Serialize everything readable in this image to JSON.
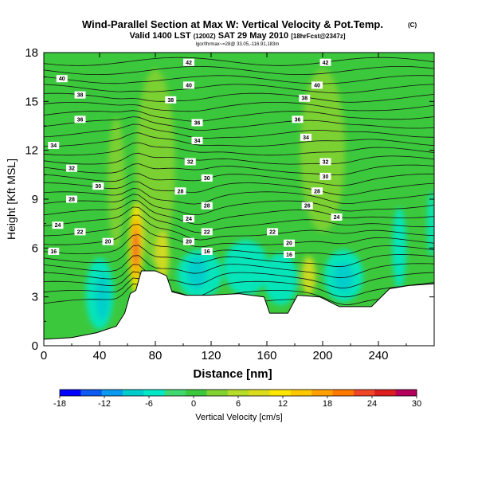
{
  "chart_data": {
    "type": "heatmap",
    "title": "Wind-Parallel Section at Max W: Vertical Velocity & Pot.Temp.",
    "title_mark": "(C)",
    "subtitle_main": "Valid 1400 LST",
    "subtitle_paren": "(1200Z)",
    "subtitle_date": "SAT 29 May 2010",
    "subtitle_fcst": "[18hrFcst@2347z]",
    "info_line": "lgor/thrmax~=28@ 33.05,-116.91,183m",
    "xlabel": "Distance [nm]",
    "ylabel": "Height [Kft MSL]",
    "xlim": [
      0,
      280
    ],
    "ylim": [
      0,
      18
    ],
    "x_ticks": [
      0,
      40,
      80,
      120,
      160,
      200,
      240
    ],
    "y_ticks": [
      0,
      3,
      6,
      9,
      12,
      15,
      18
    ],
    "colorbar": {
      "label": "Vertical Velocity [cm/s]",
      "range": [
        -18,
        30
      ],
      "step": 3,
      "tick_labels": [
        "-18",
        "-12",
        "-6",
        "0",
        "6",
        "12",
        "18",
        "24",
        "30"
      ],
      "colors": [
        "#0000ff",
        "#0c5af0",
        "#0a9af0",
        "#00cccc",
        "#00e8c8",
        "#40d870",
        "#3cc83c",
        "#82d232",
        "#b4dc28",
        "#dcdc1e",
        "#ffe600",
        "#ffc800",
        "#ffa000",
        "#ff7800",
        "#f04628",
        "#dc1e1e",
        "#b4005a"
      ]
    },
    "terrain": [
      [
        0,
        0.4
      ],
      [
        20,
        0.5
      ],
      [
        38,
        0.8
      ],
      [
        52,
        1.2
      ],
      [
        58,
        2.0
      ],
      [
        62,
        3.2
      ],
      [
        66,
        3.4
      ],
      [
        70,
        4.6
      ],
      [
        80,
        4.6
      ],
      [
        88,
        4.3
      ],
      [
        92,
        3.3
      ],
      [
        102,
        3.1
      ],
      [
        118,
        3.1
      ],
      [
        140,
        3.2
      ],
      [
        158,
        3.0
      ],
      [
        162,
        2.0
      ],
      [
        175,
        2.0
      ],
      [
        182,
        3.1
      ],
      [
        198,
        3.0
      ],
      [
        212,
        2.4
      ],
      [
        235,
        2.4
      ],
      [
        248,
        3.5
      ],
      [
        262,
        3.7
      ],
      [
        280,
        3.8
      ]
    ],
    "isentropes_K": [
      16,
      18,
      20,
      22,
      24,
      26,
      28,
      30,
      32,
      34,
      36,
      38,
      40,
      42
    ],
    "isentrope_labels": [
      {
        "text": "42",
        "x": 104,
        "y": 17.4
      },
      {
        "text": "42",
        "x": 202,
        "y": 17.4
      },
      {
        "text": "40",
        "x": 13,
        "y": 16.4
      },
      {
        "text": "40",
        "x": 104,
        "y": 16.0
      },
      {
        "text": "40",
        "x": 196,
        "y": 16.0
      },
      {
        "text": "38",
        "x": 26,
        "y": 15.4
      },
      {
        "text": "38",
        "x": 91,
        "y": 15.1
      },
      {
        "text": "38",
        "x": 187,
        "y": 15.2
      },
      {
        "text": "36",
        "x": 26,
        "y": 13.9
      },
      {
        "text": "36",
        "x": 110,
        "y": 13.7
      },
      {
        "text": "36",
        "x": 182,
        "y": 13.9
      },
      {
        "text": "34",
        "x": 7,
        "y": 12.3
      },
      {
        "text": "34",
        "x": 110,
        "y": 12.6
      },
      {
        "text": "34",
        "x": 188,
        "y": 12.8
      },
      {
        "text": "32",
        "x": 20,
        "y": 10.9
      },
      {
        "text": "32",
        "x": 105,
        "y": 11.3
      },
      {
        "text": "32",
        "x": 202,
        "y": 11.3
      },
      {
        "text": "30",
        "x": 39,
        "y": 9.8
      },
      {
        "text": "30",
        "x": 117,
        "y": 10.3
      },
      {
        "text": "30",
        "x": 202,
        "y": 10.4
      },
      {
        "text": "28",
        "x": 20,
        "y": 9.0
      },
      {
        "text": "28",
        "x": 98,
        "y": 9.5
      },
      {
        "text": "28",
        "x": 117,
        "y": 8.6
      },
      {
        "text": "28",
        "x": 196,
        "y": 9.5
      },
      {
        "text": "26",
        "x": 189,
        "y": 8.6
      },
      {
        "text": "24",
        "x": 10,
        "y": 7.4
      },
      {
        "text": "24",
        "x": 104,
        "y": 7.8
      },
      {
        "text": "24",
        "x": 210,
        "y": 7.9
      },
      {
        "text": "22",
        "x": 26,
        "y": 7.0
      },
      {
        "text": "22",
        "x": 117,
        "y": 7.0
      },
      {
        "text": "22",
        "x": 164,
        "y": 7.0
      },
      {
        "text": "20",
        "x": 46,
        "y": 6.4
      },
      {
        "text": "20",
        "x": 104,
        "y": 6.4
      },
      {
        "text": "20",
        "x": 176,
        "y": 6.3
      },
      {
        "text": "16",
        "x": 7,
        "y": 5.8
      },
      {
        "text": "16",
        "x": 117,
        "y": 5.8
      },
      {
        "text": "16",
        "x": 176,
        "y": 5.6
      }
    ],
    "notable_features": [
      {
        "name": "updraft-max",
        "x": 66,
        "y": 6.0,
        "value_cm_s": 28
      },
      {
        "name": "downdraft-min-west",
        "x": 42,
        "y": 3.0,
        "value_cm_s": -8
      },
      {
        "name": "downdraft-min-center",
        "x": 110,
        "y": 4.5,
        "value_cm_s": -9
      },
      {
        "name": "downdraft-min-east",
        "x": 215,
        "y": 4.2,
        "value_cm_s": -9
      }
    ]
  }
}
